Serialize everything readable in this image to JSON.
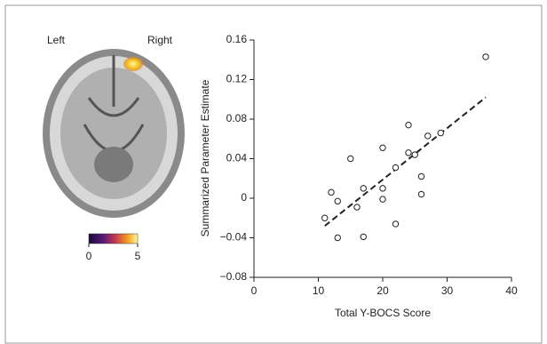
{
  "chart_data": {
    "type": "scatter",
    "x": [
      11,
      12,
      13,
      13,
      15,
      16,
      17,
      17,
      20,
      20,
      20,
      22,
      22,
      24,
      24,
      25,
      26,
      26,
      27,
      29,
      36
    ],
    "values": [
      -0.02,
      0.006,
      -0.003,
      -0.04,
      0.04,
      -0.009,
      0.01,
      -0.039,
      0.051,
      0.01,
      -0.001,
      -0.026,
      0.031,
      0.074,
      0.046,
      0.044,
      0.022,
      0.004,
      0.063,
      0.066,
      0.143
    ],
    "trend": {
      "x": [
        11,
        36
      ],
      "values": [
        -0.028,
        0.102
      ],
      "style": "dashed"
    },
    "xlabel": "Total Y-BOCS Score",
    "ylabel": "Summarized Parameter Estimate",
    "xlim": [
      0,
      40
    ],
    "xticks": [
      0,
      10,
      20,
      30,
      40
    ],
    "ylim": [
      -0.08,
      0.16
    ],
    "yticks": [
      {
        "value": -0.08,
        "label": "−0.08"
      },
      {
        "value": -0.04,
        "label": "−0.04"
      },
      0,
      0.04,
      0.08,
      0.12,
      0.16
    ],
    "grid": false
  },
  "brain_labels": {
    "left": "Left",
    "right": "Right"
  },
  "colorbar": {
    "lim": [
      0,
      5
    ],
    "ticks": [
      0,
      5
    ]
  }
}
